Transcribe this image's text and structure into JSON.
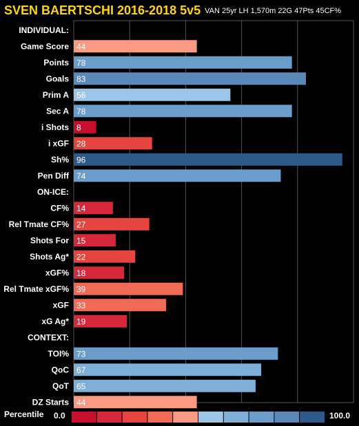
{
  "header": {
    "title": "SVEN BAERTSCHI 2016-2018 5v5",
    "subtitle": "VAN 25yr LH 1,570m 22G 47Pts 45CF%"
  },
  "chart_data": {
    "type": "bar",
    "orientation": "horizontal",
    "title": "SVEN BAERTSCHI 2016-2018 5v5",
    "subtitle": "VAN 25yr LH 1,570m 22G 47Pts 45CF%",
    "xlim": [
      0,
      100
    ],
    "grid": true,
    "rows": [
      {
        "label": "INDIVIDUAL:",
        "section": true
      },
      {
        "label": "Game Score",
        "value": 44
      },
      {
        "label": "Points",
        "value": 78
      },
      {
        "label": "Goals",
        "value": 83
      },
      {
        "label": "Prim A",
        "value": 56
      },
      {
        "label": "Sec A",
        "value": 78
      },
      {
        "label": "i Shots",
        "value": 8
      },
      {
        "label": "i xGF",
        "value": 28
      },
      {
        "label": "Sh%",
        "value": 96
      },
      {
        "label": "Pen Diff",
        "value": 74
      },
      {
        "label": "ON-ICE:",
        "section": true
      },
      {
        "label": "CF%",
        "value": 14
      },
      {
        "label": "Rel Tmate CF%",
        "value": 27
      },
      {
        "label": "Shots For",
        "value": 15
      },
      {
        "label": "Shots Ag*",
        "value": 22
      },
      {
        "label": "xGF%",
        "value": 18
      },
      {
        "label": "Rel Tmate xGF%",
        "value": 39
      },
      {
        "label": "xGF",
        "value": 33
      },
      {
        "label": "xG Ag*",
        "value": 19
      },
      {
        "label": "CONTEXT:",
        "section": true
      },
      {
        "label": "TOI%",
        "value": 73
      },
      {
        "label": "QoC",
        "value": 67
      },
      {
        "label": "QoT",
        "value": 65
      },
      {
        "label": "DZ Starts",
        "value": 44
      }
    ],
    "legend": {
      "title": "Percentile",
      "min_label": "0.0",
      "max_label": "100.0",
      "colors": [
        "#C8102E",
        "#D6283A",
        "#E5443F",
        "#F06A55",
        "#FB9A83",
        "#9DC6E6",
        "#7EAFD6",
        "#6A9DC9",
        "#5A89B8",
        "#2E5A8A"
      ]
    }
  }
}
